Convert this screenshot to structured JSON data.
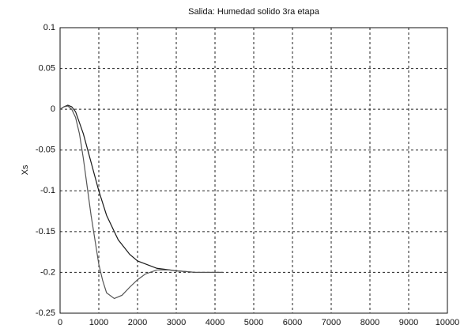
{
  "chart_data": {
    "type": "line",
    "title": "Salida: Humedad solido 3ra etapa",
    "y_label": "Xs",
    "xlim": [
      0,
      10000
    ],
    "xticks": [
      0,
      1000,
      2000,
      3000,
      4000,
      5000,
      6000,
      7000,
      8000,
      9000,
      10000
    ],
    "ylim": [
      -0.25,
      0.1
    ],
    "yticks": [
      0.1,
      0.05,
      0,
      -0.05,
      -0.1,
      -0.15,
      -0.2,
      -0.25
    ],
    "grid": true,
    "series": [
      {
        "color": "#1a1a1a",
        "x": [
          0,
          100,
          200,
          300,
          400,
          600,
          800,
          1000,
          1200,
          1500,
          1800,
          2000,
          2500,
          3000,
          3500,
          4000,
          4200
        ],
        "values": [
          0,
          0.003,
          0.005,
          0.003,
          -0.003,
          -0.03,
          -0.065,
          -0.1,
          -0.13,
          -0.16,
          -0.178,
          -0.186,
          -0.195,
          -0.198,
          -0.2,
          -0.2,
          -0.2
        ]
      },
      {
        "color": "#555555",
        "x": [
          0,
          100,
          200,
          300,
          400,
          500,
          600,
          700,
          800,
          900,
          1000,
          1100,
          1200,
          1400,
          1600,
          1800,
          2000,
          2200,
          2500,
          2800,
          3000,
          3500,
          4000,
          4200
        ],
        "values": [
          0,
          0.003,
          0.004,
          0,
          -0.01,
          -0.03,
          -0.06,
          -0.095,
          -0.13,
          -0.16,
          -0.19,
          -0.21,
          -0.225,
          -0.232,
          -0.228,
          -0.218,
          -0.209,
          -0.202,
          -0.197,
          -0.197,
          -0.198,
          -0.2,
          -0.2,
          -0.2
        ]
      }
    ]
  }
}
